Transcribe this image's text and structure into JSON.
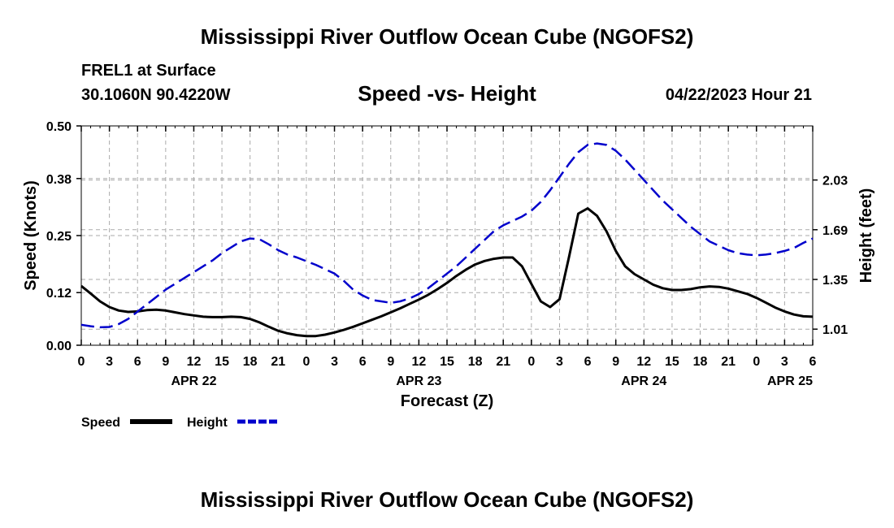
{
  "page": {
    "title_top": "Mississippi River Outflow Ocean Cube (NGOFS2)",
    "title_bottom": "Mississippi River Outflow Ocean Cube (NGOFS2)",
    "station_name": "FREL1 at Surface",
    "station_coords": "30.1060N  90.4220W",
    "plot_title": "Speed -vs- Height",
    "datetime": "04/22/2023 Hour 21"
  },
  "colors": {
    "speed": "#000000",
    "height": "#0000cc",
    "grid": "#aaaaaa"
  },
  "chart_data": {
    "type": "line",
    "title": "Speed -vs- Height",
    "xlabel": "Forecast (Z)",
    "ylabel": "Speed (Knots)",
    "y2label": "Height (feet)",
    "xlim": [
      0,
      78
    ],
    "ylim": [
      0,
      0.5
    ],
    "y2lim": [
      0.9,
      2.4
    ],
    "x_ticks": [
      0,
      3,
      6,
      9,
      12,
      15,
      18,
      21,
      24,
      27,
      30,
      33,
      36,
      39,
      42,
      45,
      48,
      51,
      54,
      57,
      60,
      63,
      66,
      69,
      72,
      75,
      78
    ],
    "x_tick_labels": [
      "0",
      "3",
      "6",
      "9",
      "12",
      "15",
      "18",
      "21",
      "0",
      "3",
      "6",
      "9",
      "12",
      "15",
      "18",
      "21",
      "0",
      "3",
      "6",
      "9",
      "12",
      "15",
      "18",
      "21",
      "0",
      "3",
      "6"
    ],
    "date_labels": [
      {
        "x": 12,
        "label": "APR 22"
      },
      {
        "x": 36,
        "label": "APR 23"
      },
      {
        "x": 60,
        "label": "APR 24"
      },
      {
        "x": 78,
        "label": "APR 25"
      }
    ],
    "y_ticks": [
      0.0,
      0.12,
      0.25,
      0.38,
      0.5
    ],
    "y_tick_labels": [
      "0.00",
      "0.12",
      "0.25",
      "0.38",
      "0.50"
    ],
    "y2_ticks": [
      1.01,
      1.35,
      1.69,
      2.03
    ],
    "y2_tick_labels": [
      "1.01",
      "1.35",
      "1.69",
      "2.03"
    ],
    "legend": [
      {
        "name": "Speed",
        "style": "solid"
      },
      {
        "name": "Height",
        "style": "dashed"
      }
    ],
    "series": [
      {
        "name": "Speed",
        "axis": "left",
        "style": "solid",
        "x": [
          0,
          1,
          2,
          3,
          4,
          5,
          6,
          7,
          8,
          9,
          10,
          11,
          12,
          13,
          14,
          15,
          16,
          17,
          18,
          19,
          20,
          21,
          22,
          23,
          24,
          25,
          26,
          27,
          28,
          29,
          30,
          31,
          32,
          33,
          34,
          35,
          36,
          37,
          38,
          39,
          40,
          41,
          42,
          43,
          44,
          45,
          46,
          47,
          48,
          49,
          50,
          51,
          52,
          53,
          54,
          55,
          56,
          57,
          58,
          59,
          60,
          61,
          62,
          63,
          64,
          65,
          66,
          67,
          68,
          69,
          70,
          71,
          72,
          73,
          74,
          75,
          76,
          77,
          78
        ],
        "values": [
          0.135,
          0.118,
          0.1,
          0.087,
          0.079,
          0.076,
          0.077,
          0.08,
          0.081,
          0.079,
          0.075,
          0.071,
          0.068,
          0.065,
          0.064,
          0.064,
          0.065,
          0.064,
          0.06,
          0.052,
          0.042,
          0.033,
          0.027,
          0.023,
          0.021,
          0.021,
          0.024,
          0.029,
          0.035,
          0.042,
          0.05,
          0.058,
          0.066,
          0.075,
          0.084,
          0.094,
          0.104,
          0.115,
          0.128,
          0.142,
          0.158,
          0.172,
          0.184,
          0.192,
          0.197,
          0.2,
          0.2,
          0.18,
          0.14,
          0.1,
          0.087,
          0.105,
          0.2,
          0.3,
          0.312,
          0.295,
          0.26,
          0.215,
          0.18,
          0.162,
          0.15,
          0.138,
          0.13,
          0.126,
          0.126,
          0.128,
          0.132,
          0.134,
          0.133,
          0.129,
          0.123,
          0.117,
          0.108,
          0.097,
          0.086,
          0.077,
          0.07,
          0.066,
          0.065
        ]
      },
      {
        "name": "Height",
        "axis": "right",
        "style": "dashed",
        "x": [
          0,
          1,
          2,
          3,
          4,
          5,
          6,
          7,
          8,
          9,
          10,
          11,
          12,
          13,
          14,
          15,
          16,
          17,
          18,
          19,
          20,
          21,
          22,
          23,
          24,
          25,
          26,
          27,
          28,
          29,
          30,
          31,
          32,
          33,
          34,
          35,
          36,
          37,
          38,
          39,
          40,
          41,
          42,
          43,
          44,
          45,
          46,
          47,
          48,
          49,
          50,
          51,
          52,
          53,
          54,
          55,
          56,
          57,
          58,
          59,
          60,
          61,
          62,
          63,
          64,
          65,
          66,
          67,
          68,
          69,
          70,
          71,
          72,
          73,
          74,
          75,
          76,
          77,
          78
        ],
        "values": [
          1.04,
          1.03,
          1.023,
          1.025,
          1.045,
          1.08,
          1.13,
          1.18,
          1.23,
          1.28,
          1.32,
          1.36,
          1.4,
          1.44,
          1.48,
          1.53,
          1.57,
          1.61,
          1.63,
          1.625,
          1.59,
          1.55,
          1.52,
          1.5,
          1.475,
          1.45,
          1.42,
          1.39,
          1.34,
          1.28,
          1.24,
          1.21,
          1.2,
          1.19,
          1.2,
          1.22,
          1.25,
          1.29,
          1.34,
          1.39,
          1.44,
          1.5,
          1.56,
          1.62,
          1.68,
          1.72,
          1.75,
          1.78,
          1.82,
          1.88,
          1.96,
          2.05,
          2.14,
          2.22,
          2.27,
          2.28,
          2.27,
          2.23,
          2.17,
          2.1,
          2.03,
          1.96,
          1.89,
          1.83,
          1.77,
          1.71,
          1.66,
          1.61,
          1.58,
          1.55,
          1.53,
          1.52,
          1.515,
          1.52,
          1.53,
          1.545,
          1.565,
          1.6,
          1.63
        ]
      }
    ]
  }
}
